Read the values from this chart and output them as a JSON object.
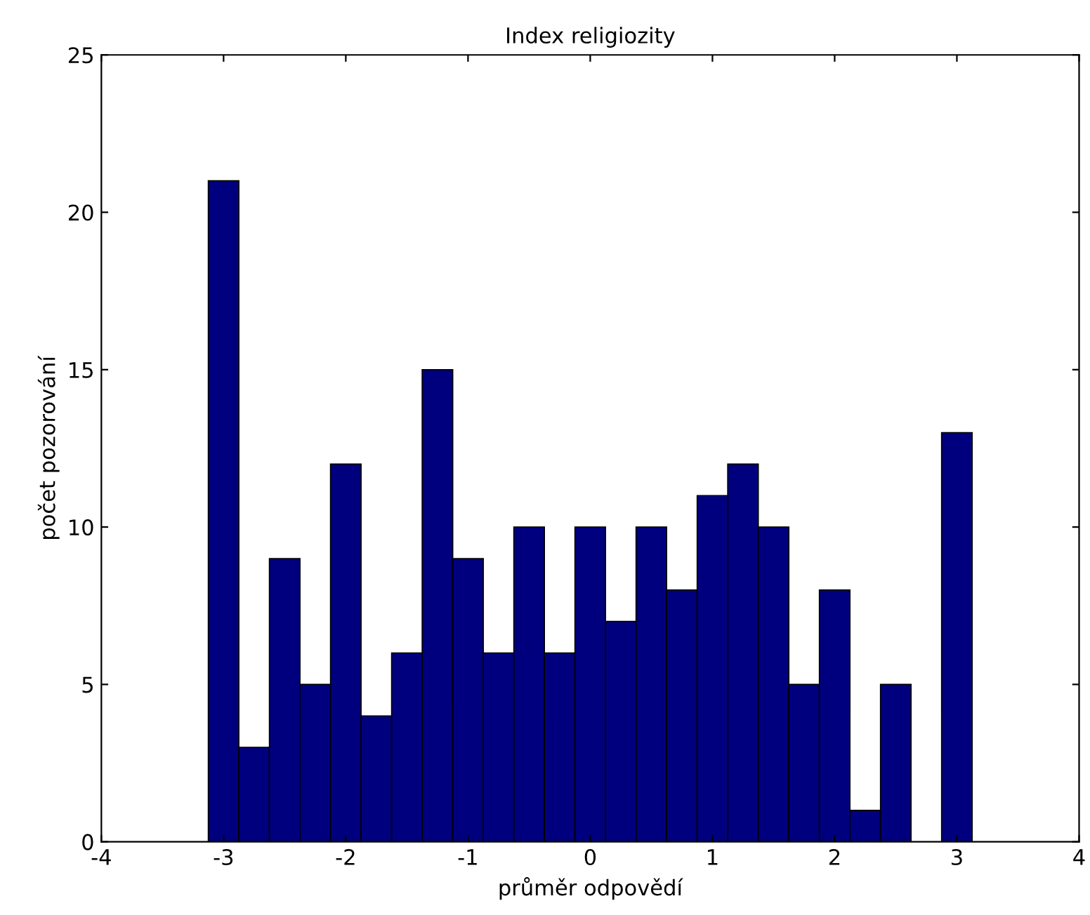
{
  "chart_data": {
    "type": "histogram",
    "title": "Index religiozity",
    "xlabel": "průměr odpovědí",
    "ylabel": "počet pozorování",
    "bins": [
      -3.125,
      -2.875,
      -2.625,
      -2.375,
      -2.125,
      -1.875,
      -1.625,
      -1.375,
      -1.125,
      -0.875,
      -0.625,
      -0.375,
      -0.125,
      0.125,
      0.375,
      0.625,
      0.875,
      1.125,
      1.375,
      1.625,
      1.875,
      2.125,
      2.375,
      2.625,
      2.875,
      3.125
    ],
    "values": [
      21,
      3,
      9,
      5,
      12,
      4,
      6,
      15,
      9,
      6,
      10,
      6,
      10,
      7,
      10,
      8,
      11,
      12,
      10,
      5,
      8,
      1,
      5,
      0,
      13
    ],
    "color": "#00007f",
    "xlim": [
      -4,
      4
    ],
    "xticks": [
      -4,
      -3,
      -2,
      -1,
      0,
      1,
      2,
      3,
      4
    ],
    "ylim": [
      0,
      25
    ],
    "yticks": [
      0,
      5,
      10,
      15,
      20,
      25
    ],
    "grid": false
  }
}
